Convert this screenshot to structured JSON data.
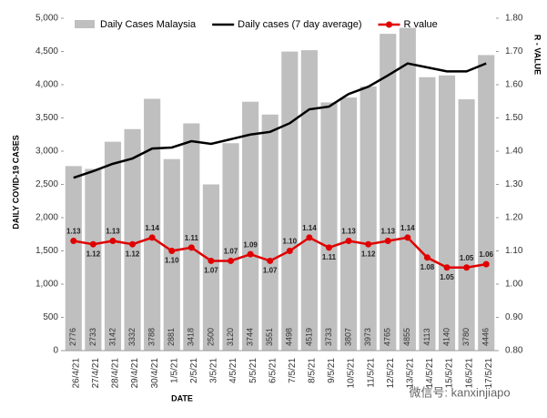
{
  "chart_data": {
    "type": "bar-line",
    "legend_position": "top",
    "x_label": "DATE",
    "y_label": "DAILY COVID-19 CASES",
    "y2_label": "R - VALUE",
    "watermark": "微信号: kanxinjiapo",
    "categories": [
      "26/4/21",
      "27/4/21",
      "28/4/21",
      "29/4/21",
      "30/4/21",
      "1/5/21",
      "2/5/21",
      "3/5/21",
      "4/5/21",
      "5/5/21",
      "6/5/21",
      "7/5/21",
      "8/5/21",
      "9/5/21",
      "10/5/21",
      "11/5/21",
      "12/5/21",
      "13/5/21",
      "14/5/21",
      "15/5/21",
      "16/5/21",
      "17/5/21"
    ],
    "series": [
      {
        "name": "Daily Cases Malaysia",
        "type": "bar",
        "color": "#bfbfbf",
        "values": [
          2776,
          2733,
          3142,
          3332,
          3788,
          2881,
          3418,
          2500,
          3120,
          3744,
          3551,
          4498,
          4519,
          3733,
          3807,
          3973,
          4765,
          4855,
          4113,
          4140,
          3780,
          4446
        ]
      },
      {
        "name": "Daily cases (7 day average)",
        "type": "line",
        "color": "#000000",
        "values": [
          2600,
          2700,
          2810,
          2890,
          3040,
          3055,
          3150,
          3110,
          3180,
          3250,
          3290,
          3420,
          3630,
          3670,
          3860,
          3970,
          4140,
          4320,
          4260,
          4200,
          4200,
          4320
        ]
      },
      {
        "name": "R value",
        "type": "line",
        "axis": "y2",
        "color": "#e00000",
        "values": [
          1.13,
          1.12,
          1.13,
          1.12,
          1.14,
          1.1,
          1.11,
          1.07,
          1.07,
          1.09,
          1.07,
          1.1,
          1.14,
          1.11,
          1.13,
          1.12,
          1.13,
          1.14,
          1.08,
          1.05,
          1.05,
          1.06
        ],
        "value_labels": [
          "1.13",
          "1.12",
          "1.13",
          "1.12",
          "1.14",
          "1.10",
          "1.11",
          "1.07",
          "1.07",
          "1.09",
          "1.07",
          "1.10",
          "1.14",
          "1.11",
          "1.13",
          "1.12",
          "1.13",
          "1.14",
          "1.08",
          "1.05",
          "1.05",
          "1.06"
        ]
      }
    ],
    "ylim": [
      0,
      5000
    ],
    "yticks": [
      0,
      500,
      {
        "value": 1000,
        "label": "1,000"
      },
      {
        "value": 1500,
        "label": "1,500"
      },
      {
        "value": 2000,
        "label": "2,000"
      },
      {
        "value": 2500,
        "label": "2,500"
      },
      {
        "value": 3000,
        "label": "3,000"
      },
      {
        "value": 3500,
        "label": "3,500"
      },
      {
        "value": 4000,
        "label": "4,000"
      },
      {
        "value": 4500,
        "label": "4,500"
      },
      {
        "value": 5000,
        "label": "5,000"
      }
    ],
    "y2lim": [
      0.8,
      1.8
    ],
    "y2ticks": [
      {
        "value": 0.8,
        "label": "0.80"
      },
      {
        "value": 0.9,
        "label": "0.90"
      },
      {
        "value": 1.0,
        "label": "1.00"
      },
      {
        "value": 1.1,
        "label": "1.10"
      },
      {
        "value": 1.2,
        "label": "1.20"
      },
      {
        "value": 1.3,
        "label": "1.30"
      },
      {
        "value": 1.4,
        "label": "1.40"
      },
      {
        "value": 1.5,
        "label": "1.50"
      },
      {
        "value": 1.6,
        "label": "1.60"
      },
      {
        "value": 1.7,
        "label": "1.70"
      },
      {
        "value": 1.8,
        "label": "1.80"
      }
    ]
  }
}
